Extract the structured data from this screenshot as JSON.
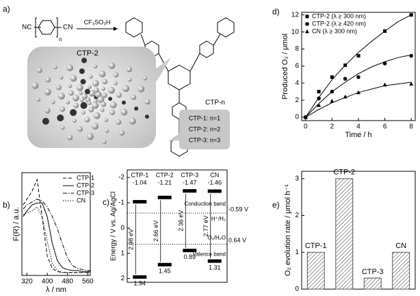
{
  "panel_a": {
    "label": "a)",
    "reagent_left": "NC",
    "reagent_right": "CN",
    "n": "n",
    "catalyst": "CF₃SO₃H",
    "bubble_label": "CTP-2",
    "product": "CTP-n",
    "list": [
      "CTP-1: n=1",
      "CTP-2: n=2",
      "CTP-3: n=3"
    ]
  },
  "chart_data": [
    {
      "type": "scatter",
      "panel_label": "d)",
      "xlabel": "Time / h",
      "ylabel": "Produced O₂ / μmol",
      "x": [
        0,
        1,
        2,
        3,
        4,
        6,
        8
      ],
      "fit_x": [
        0,
        1,
        2,
        3,
        4,
        5,
        6,
        7,
        8
      ],
      "xlim": [
        -0.3,
        8.3
      ],
      "ylim": [
        -0.4,
        12.3
      ],
      "xticks": [
        0,
        2,
        4,
        6,
        8
      ],
      "yticks": [
        0,
        2,
        4,
        6,
        8,
        10,
        12
      ],
      "legend": "upper left",
      "series": [
        {
          "name": "CTP-2 (λ ≥ 300 nm)",
          "marker": "square",
          "color": "#000000",
          "values": [
            0,
            3.0,
            4.7,
            6.1,
            7.2,
            10.1,
            12.0
          ],
          "fit": [
            0,
            2.3,
            4.4,
            6.1,
            7.6,
            8.9,
            10.1,
            11.2,
            12.0
          ]
        },
        {
          "name": "CTP-2 (λ ≥ 420 nm)",
          "marker": "circle",
          "color": "#000000",
          "values": [
            0,
            2.2,
            3.0,
            4.5,
            4.7,
            6.3,
            7.2
          ],
          "fit": [
            0,
            1.6,
            3.0,
            4.1,
            5.1,
            5.9,
            6.5,
            7.0,
            7.3
          ]
        },
        {
          "name": "CN (λ ≥ 300 nm)",
          "marker": "triangle",
          "color": "#000000",
          "values": [
            0,
            1.4,
            1.9,
            2.4,
            2.9,
            3.8,
            3.9
          ],
          "fit": [
            0,
            0.9,
            1.7,
            2.3,
            2.9,
            3.3,
            3.7,
            3.9,
            4.1
          ]
        }
      ]
    },
    {
      "type": "bar",
      "panel_label": "e)",
      "ylabel": "O₂ evolution rate / μmol h⁻¹",
      "categories": [
        "CTP-1",
        "CTP-2",
        "CTP-3",
        "CN"
      ],
      "values": [
        1,
        3,
        0.3,
        1
      ],
      "color": "#555555",
      "hatch": true,
      "ylim": [
        0,
        3.2
      ],
      "yticks": [
        0,
        1,
        2,
        3
      ]
    },
    {
      "type": "line",
      "panel_label": "b)",
      "xlabel": "λ / nm",
      "ylabel": "F(R) / a.u.",
      "x": [
        305,
        320,
        340,
        360,
        380,
        400,
        420,
        440,
        460,
        480,
        500,
        520,
        540,
        560,
        570
      ],
      "xlim": [
        300,
        570
      ],
      "ylim": [
        0,
        1.05
      ],
      "xticks": [
        320,
        400,
        480,
        560
      ],
      "legend": "upper right",
      "series": [
        {
          "name": "CTP-1",
          "dash": "dashed",
          "color": "#000000",
          "values": [
            0.72,
            0.78,
            0.86,
            0.98,
            0.6,
            0.2,
            0.07,
            0.04,
            0.03,
            0.03,
            0.03,
            0.03,
            0.03,
            0.03,
            0.03
          ]
        },
        {
          "name": "CTP-2",
          "dash": "solid",
          "color": "#000000",
          "values": [
            0.6,
            0.66,
            0.72,
            0.74,
            0.74,
            0.6,
            0.33,
            0.15,
            0.08,
            0.06,
            0.05,
            0.05,
            0.04,
            0.04,
            0.04
          ]
        },
        {
          "name": "CTP-3",
          "dash": "dashdot",
          "color": "#000000",
          "values": [
            0.68,
            0.72,
            0.75,
            0.78,
            0.76,
            0.7,
            0.6,
            0.48,
            0.32,
            0.18,
            0.1,
            0.07,
            0.06,
            0.05,
            0.05
          ]
        },
        {
          "name": "CN",
          "dash": "dotted",
          "color": "#000000",
          "values": [
            0.62,
            0.64,
            0.66,
            0.7,
            0.6,
            0.35,
            0.12,
            0.05,
            0.03,
            0.03,
            0.03,
            0.03,
            0.03,
            0.03,
            0.03
          ]
        }
      ]
    },
    {
      "type": "band",
      "panel_label": "c)",
      "ylabel": "Energy / V vs. Ag/AgCl",
      "categories": [
        "CTP-1",
        "CTP-2",
        "CTP-3",
        "CN"
      ],
      "conduction": [
        -1.04,
        -1.21,
        -1.47,
        -1.46
      ],
      "valence": [
        1.94,
        1.45,
        0.89,
        1.31
      ],
      "gaps": [
        2.98,
        2.66,
        2.36,
        2.77
      ],
      "gap_labels": [
        "2.98 eV",
        "2.66 eV",
        "2.36 eV",
        "2.77 eV"
      ],
      "ylim": [
        -2.3,
        2.15
      ],
      "yticks": [
        -2,
        -1,
        0,
        1,
        2
      ],
      "references": [
        {
          "value": -0.59,
          "label": "-0.59 V",
          "name": "H⁺/H₂"
        },
        {
          "value": 0.64,
          "label": "0.64 V",
          "name": "O₂/H₂O"
        }
      ],
      "band_names": [
        "Conduction band",
        "Valence band"
      ]
    }
  ]
}
